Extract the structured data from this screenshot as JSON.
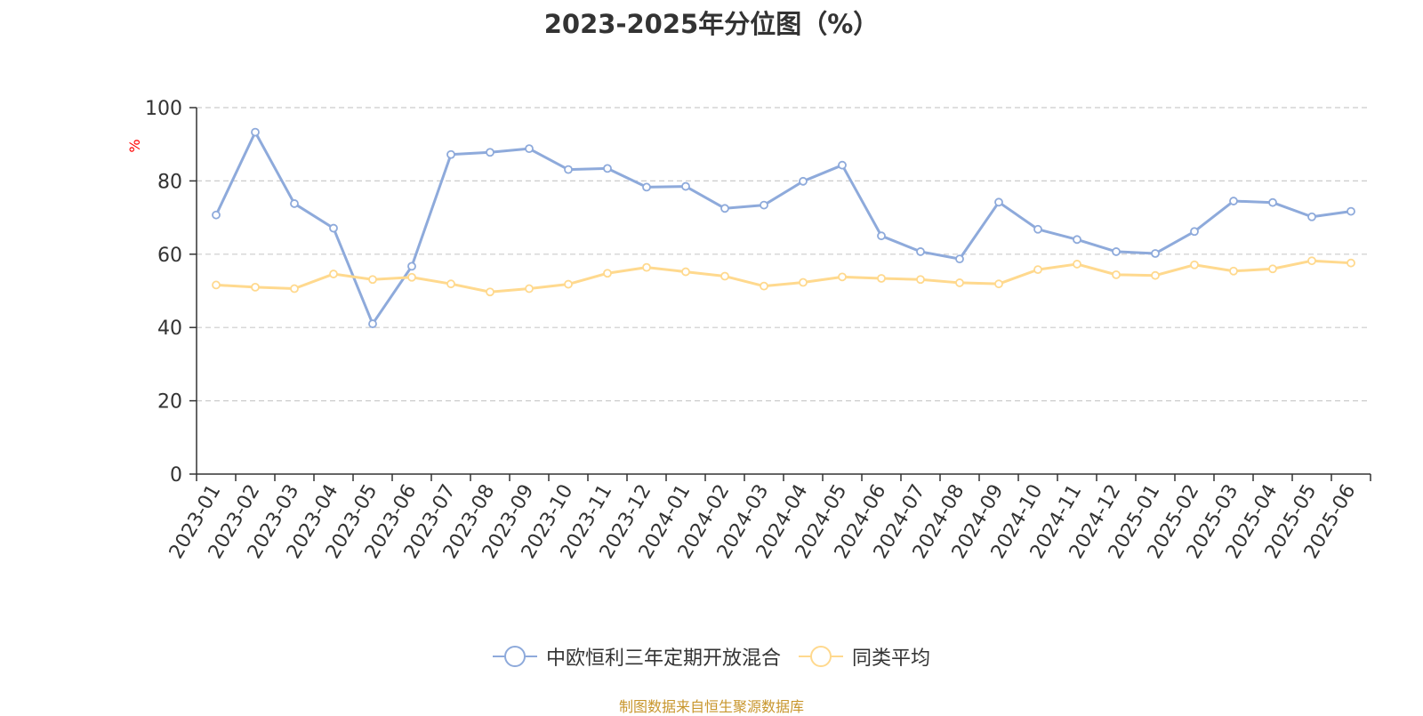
{
  "chart_data": {
    "type": "line",
    "title": "2023-2025年分位图（%）",
    "ylabel": "%",
    "xlabel": "",
    "ylim": [
      0,
      100
    ],
    "yticks": [
      0,
      20,
      40,
      60,
      80,
      100
    ],
    "grid": true,
    "legend_position": "bottom-center",
    "categories": [
      "2023-01",
      "2023-02",
      "2023-03",
      "2023-04",
      "2023-05",
      "2023-06",
      "2023-07",
      "2023-08",
      "2023-09",
      "2023-10",
      "2023-11",
      "2023-12",
      "2024-01",
      "2024-02",
      "2024-03",
      "2024-04",
      "2024-05",
      "2024-06",
      "2024-07",
      "2024-08",
      "2024-09",
      "2024-10",
      "2024-11",
      "2024-12",
      "2025-01",
      "2025-02",
      "2025-03",
      "2025-04",
      "2025-05",
      "2025-06"
    ],
    "series": [
      {
        "name": "中欧恒利三年定期开放混合",
        "color": "#8eaadb",
        "values": [
          70.7,
          93.3,
          73.8,
          67.1,
          41.0,
          56.7,
          87.2,
          87.8,
          88.8,
          83.1,
          83.4,
          78.3,
          78.5,
          72.5,
          73.4,
          79.9,
          84.3,
          65.0,
          60.7,
          58.7,
          74.2,
          66.8,
          64.0,
          60.7,
          60.2,
          66.2,
          74.5,
          74.1,
          70.2,
          71.7
        ]
      },
      {
        "name": "同类平均",
        "color": "#ffd98e",
        "values": [
          51.6,
          51.0,
          50.6,
          54.6,
          53.1,
          53.7,
          51.9,
          49.7,
          50.6,
          51.8,
          54.8,
          56.4,
          55.2,
          54.0,
          51.3,
          52.3,
          53.8,
          53.4,
          53.1,
          52.2,
          51.9,
          55.8,
          57.3,
          54.4,
          54.2,
          57.1,
          55.4,
          56.0,
          58.2,
          57.6
        ]
      }
    ]
  },
  "source_note": "制图数据来自恒生聚源数据库",
  "colors": {
    "title": "#333333",
    "axis": "#333333",
    "grid": "#cccccc",
    "ylabel": "#ff0000",
    "source_note": "#c8962d"
  }
}
